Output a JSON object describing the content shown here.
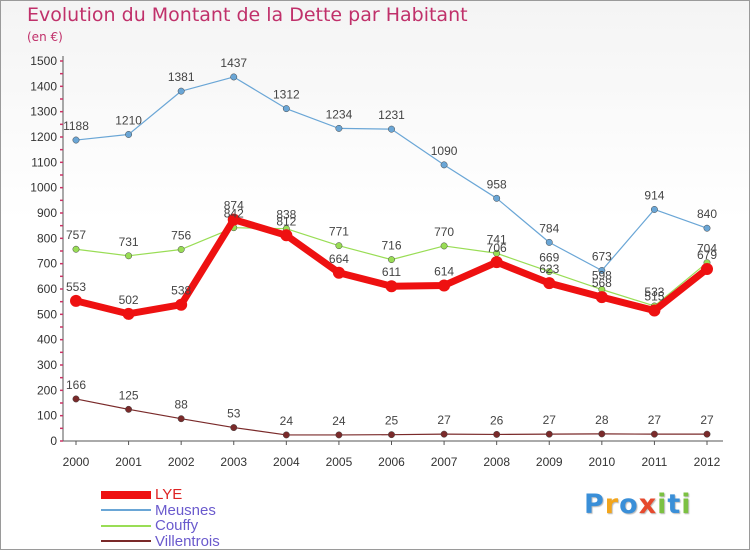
{
  "header": {
    "title": "Evolution du Montant de la Dette par Habitant",
    "unit": "(en €)"
  },
  "logo": {
    "letters": [
      "P",
      "r",
      "o",
      "x",
      "i",
      "t",
      "i"
    ],
    "colors": [
      "#3a8fd8",
      "#f2a51c",
      "#3a8fd8",
      "#e64a2e",
      "#7cc142",
      "#3a8fd8",
      "#7cc142"
    ]
  },
  "chart_data": {
    "type": "line",
    "title": "Evolution du Montant de la Dette par Habitant",
    "ylabel": "(en €)",
    "xlabel": "",
    "x": [
      "2000",
      "2001",
      "2002",
      "2003",
      "2004",
      "2005",
      "2006",
      "2007",
      "2008",
      "2009",
      "2010",
      "2011",
      "2012"
    ],
    "ylim": [
      0,
      1500
    ],
    "yticks": [
      0,
      100,
      200,
      300,
      400,
      500,
      600,
      700,
      800,
      900,
      1000,
      1100,
      1200,
      1300,
      1400,
      1500
    ],
    "grid": false,
    "legend": "bottom-left",
    "series": [
      {
        "name": "LYE",
        "color": "#ee1111",
        "values": [
          553,
          502,
          538,
          874,
          812,
          664,
          611,
          614,
          706,
          623,
          568,
          515,
          679
        ]
      },
      {
        "name": "Meusnes",
        "color": "#6aa6d6",
        "values": [
          1188,
          1210,
          1381,
          1437,
          1312,
          1234,
          1231,
          1090,
          958,
          784,
          673,
          914,
          840
        ]
      },
      {
        "name": "Couffy",
        "color": "#99dd55",
        "values": [
          757,
          731,
          756,
          842,
          838,
          771,
          716,
          770,
          741,
          669,
          598,
          533,
          704
        ]
      },
      {
        "name": "Villentrois",
        "color": "#7a2a2a",
        "values": [
          166,
          125,
          88,
          53,
          24,
          24,
          25,
          27,
          26,
          27,
          28,
          27,
          27
        ]
      }
    ]
  }
}
